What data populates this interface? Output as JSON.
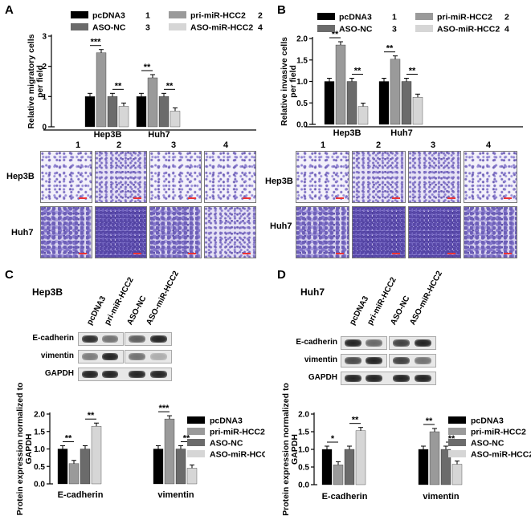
{
  "panels": {
    "A": {
      "label": "A"
    },
    "B": {
      "label": "B"
    },
    "C": {
      "label": "C",
      "cell_line": "Hep3B"
    },
    "D": {
      "label": "D",
      "cell_line": "Huh7"
    }
  },
  "legend_top": [
    {
      "name": "pcDNA3",
      "num": "1",
      "color": "#000000"
    },
    {
      "name": "ASO-NC",
      "num": "3",
      "color": "#6b6b6b"
    },
    {
      "name": "pri-miR-HCC2",
      "num": "2",
      "color": "#9a9a9a"
    },
    {
      "name": "ASO-miR-HCC2",
      "num": "4",
      "color": "#d6d6d6"
    }
  ],
  "legend_bottom": [
    {
      "name": "pcDNA3",
      "color": "#000000"
    },
    {
      "name": "pri-miR-HCC2",
      "color": "#9a9a9a"
    },
    {
      "name": "ASO-NC",
      "color": "#6b6b6b"
    },
    {
      "name": "ASO-miR-HCC2",
      "color": "#d6d6d6"
    }
  ],
  "micro": {
    "col_labels": [
      "1",
      "2",
      "3",
      "4"
    ],
    "row_labels": [
      "Hep3B",
      "Huh7"
    ]
  },
  "blots": {
    "lanes": [
      "pcDNA3",
      "pri-miR-HCC2",
      "ASO-NC",
      "ASO-miR-HCC2"
    ],
    "rows": [
      "E-cadherin",
      "vimentin",
      "GAPDH"
    ]
  },
  "chart_data": [
    {
      "panel": "A",
      "type": "bar",
      "ylabel": "Relative migratory cells per field",
      "ylim": [
        0,
        3
      ],
      "yticks": [
        "0",
        "1",
        "2",
        "3"
      ],
      "categories": [
        "Hep3B",
        "Huh7"
      ],
      "series": [
        {
          "name": "pcDNA3",
          "values": [
            1.0,
            1.0
          ]
        },
        {
          "name": "pri-miR-HCC2",
          "values": [
            2.45,
            1.62
          ]
        },
        {
          "name": "ASO-NC",
          "values": [
            1.0,
            1.0
          ]
        },
        {
          "name": "ASO-miR-HCC2",
          "values": [
            0.68,
            0.52
          ]
        }
      ],
      "significance": [
        {
          "group": 0,
          "pair": [
            0,
            1
          ],
          "label": "***"
        },
        {
          "group": 0,
          "pair": [
            2,
            3
          ],
          "label": "**"
        },
        {
          "group": 1,
          "pair": [
            0,
            1
          ],
          "label": "**"
        },
        {
          "group": 1,
          "pair": [
            2,
            3
          ],
          "label": "**"
        }
      ]
    },
    {
      "panel": "B",
      "type": "bar",
      "ylabel": "Relative invasive cells per field",
      "ylim": [
        0,
        2.0
      ],
      "yticks": [
        "0.0",
        "0.5",
        "1.0",
        "1.5",
        "2.0"
      ],
      "categories": [
        "Hep3B",
        "Huh7"
      ],
      "series": [
        {
          "name": "pcDNA3",
          "values": [
            1.0,
            1.0
          ]
        },
        {
          "name": "pri-miR-HCC2",
          "values": [
            1.85,
            1.52
          ]
        },
        {
          "name": "ASO-NC",
          "values": [
            1.0,
            1.0
          ]
        },
        {
          "name": "ASO-miR-HCC2",
          "values": [
            0.42,
            0.63
          ]
        }
      ],
      "significance": [
        {
          "group": 0,
          "pair": [
            0,
            1
          ],
          "label": "**"
        },
        {
          "group": 0,
          "pair": [
            2,
            3
          ],
          "label": "**"
        },
        {
          "group": 1,
          "pair": [
            0,
            1
          ],
          "label": "**"
        },
        {
          "group": 1,
          "pair": [
            2,
            3
          ],
          "label": "**"
        }
      ]
    },
    {
      "panel": "C",
      "type": "bar",
      "ylabel": "Protein expression normalized to GAPDH",
      "ylim": [
        0,
        2.0
      ],
      "yticks": [
        "0.0",
        "0.5",
        "1.0",
        "1.5",
        "2.0"
      ],
      "categories": [
        "E-cadherin",
        "vimentin"
      ],
      "series": [
        {
          "name": "pcDNA3",
          "values": [
            1.0,
            1.0
          ]
        },
        {
          "name": "pri-miR-HCC2",
          "values": [
            0.58,
            1.86
          ]
        },
        {
          "name": "ASO-NC",
          "values": [
            1.0,
            1.0
          ]
        },
        {
          "name": "ASO-miR-HCC2",
          "values": [
            1.65,
            0.45
          ]
        }
      ],
      "significance": [
        {
          "group": 0,
          "pair": [
            0,
            1
          ],
          "label": "**"
        },
        {
          "group": 0,
          "pair": [
            2,
            3
          ],
          "label": "**"
        },
        {
          "group": 1,
          "pair": [
            0,
            1
          ],
          "label": "***"
        },
        {
          "group": 1,
          "pair": [
            2,
            3
          ],
          "label": "**"
        }
      ]
    },
    {
      "panel": "D",
      "type": "bar",
      "ylabel": "Protein expression normalized to GAPDH",
      "ylim": [
        0,
        2.0
      ],
      "yticks": [
        "0.0",
        "0.5",
        "1.0",
        "1.5",
        "2.0"
      ],
      "categories": [
        "E-cadherin",
        "vimentin"
      ],
      "series": [
        {
          "name": "pcDNA3",
          "values": [
            1.0,
            1.0
          ]
        },
        {
          "name": "pri-miR-HCC2",
          "values": [
            0.56,
            1.5
          ]
        },
        {
          "name": "ASO-NC",
          "values": [
            1.0,
            1.0
          ]
        },
        {
          "name": "ASO-miR-HCC2",
          "values": [
            1.53,
            0.58
          ]
        }
      ],
      "significance": [
        {
          "group": 0,
          "pair": [
            0,
            1
          ],
          "label": "*"
        },
        {
          "group": 0,
          "pair": [
            2,
            3
          ],
          "label": "**"
        },
        {
          "group": 1,
          "pair": [
            0,
            1
          ],
          "label": "**"
        },
        {
          "group": 1,
          "pair": [
            2,
            3
          ],
          "label": "**"
        }
      ]
    }
  ]
}
